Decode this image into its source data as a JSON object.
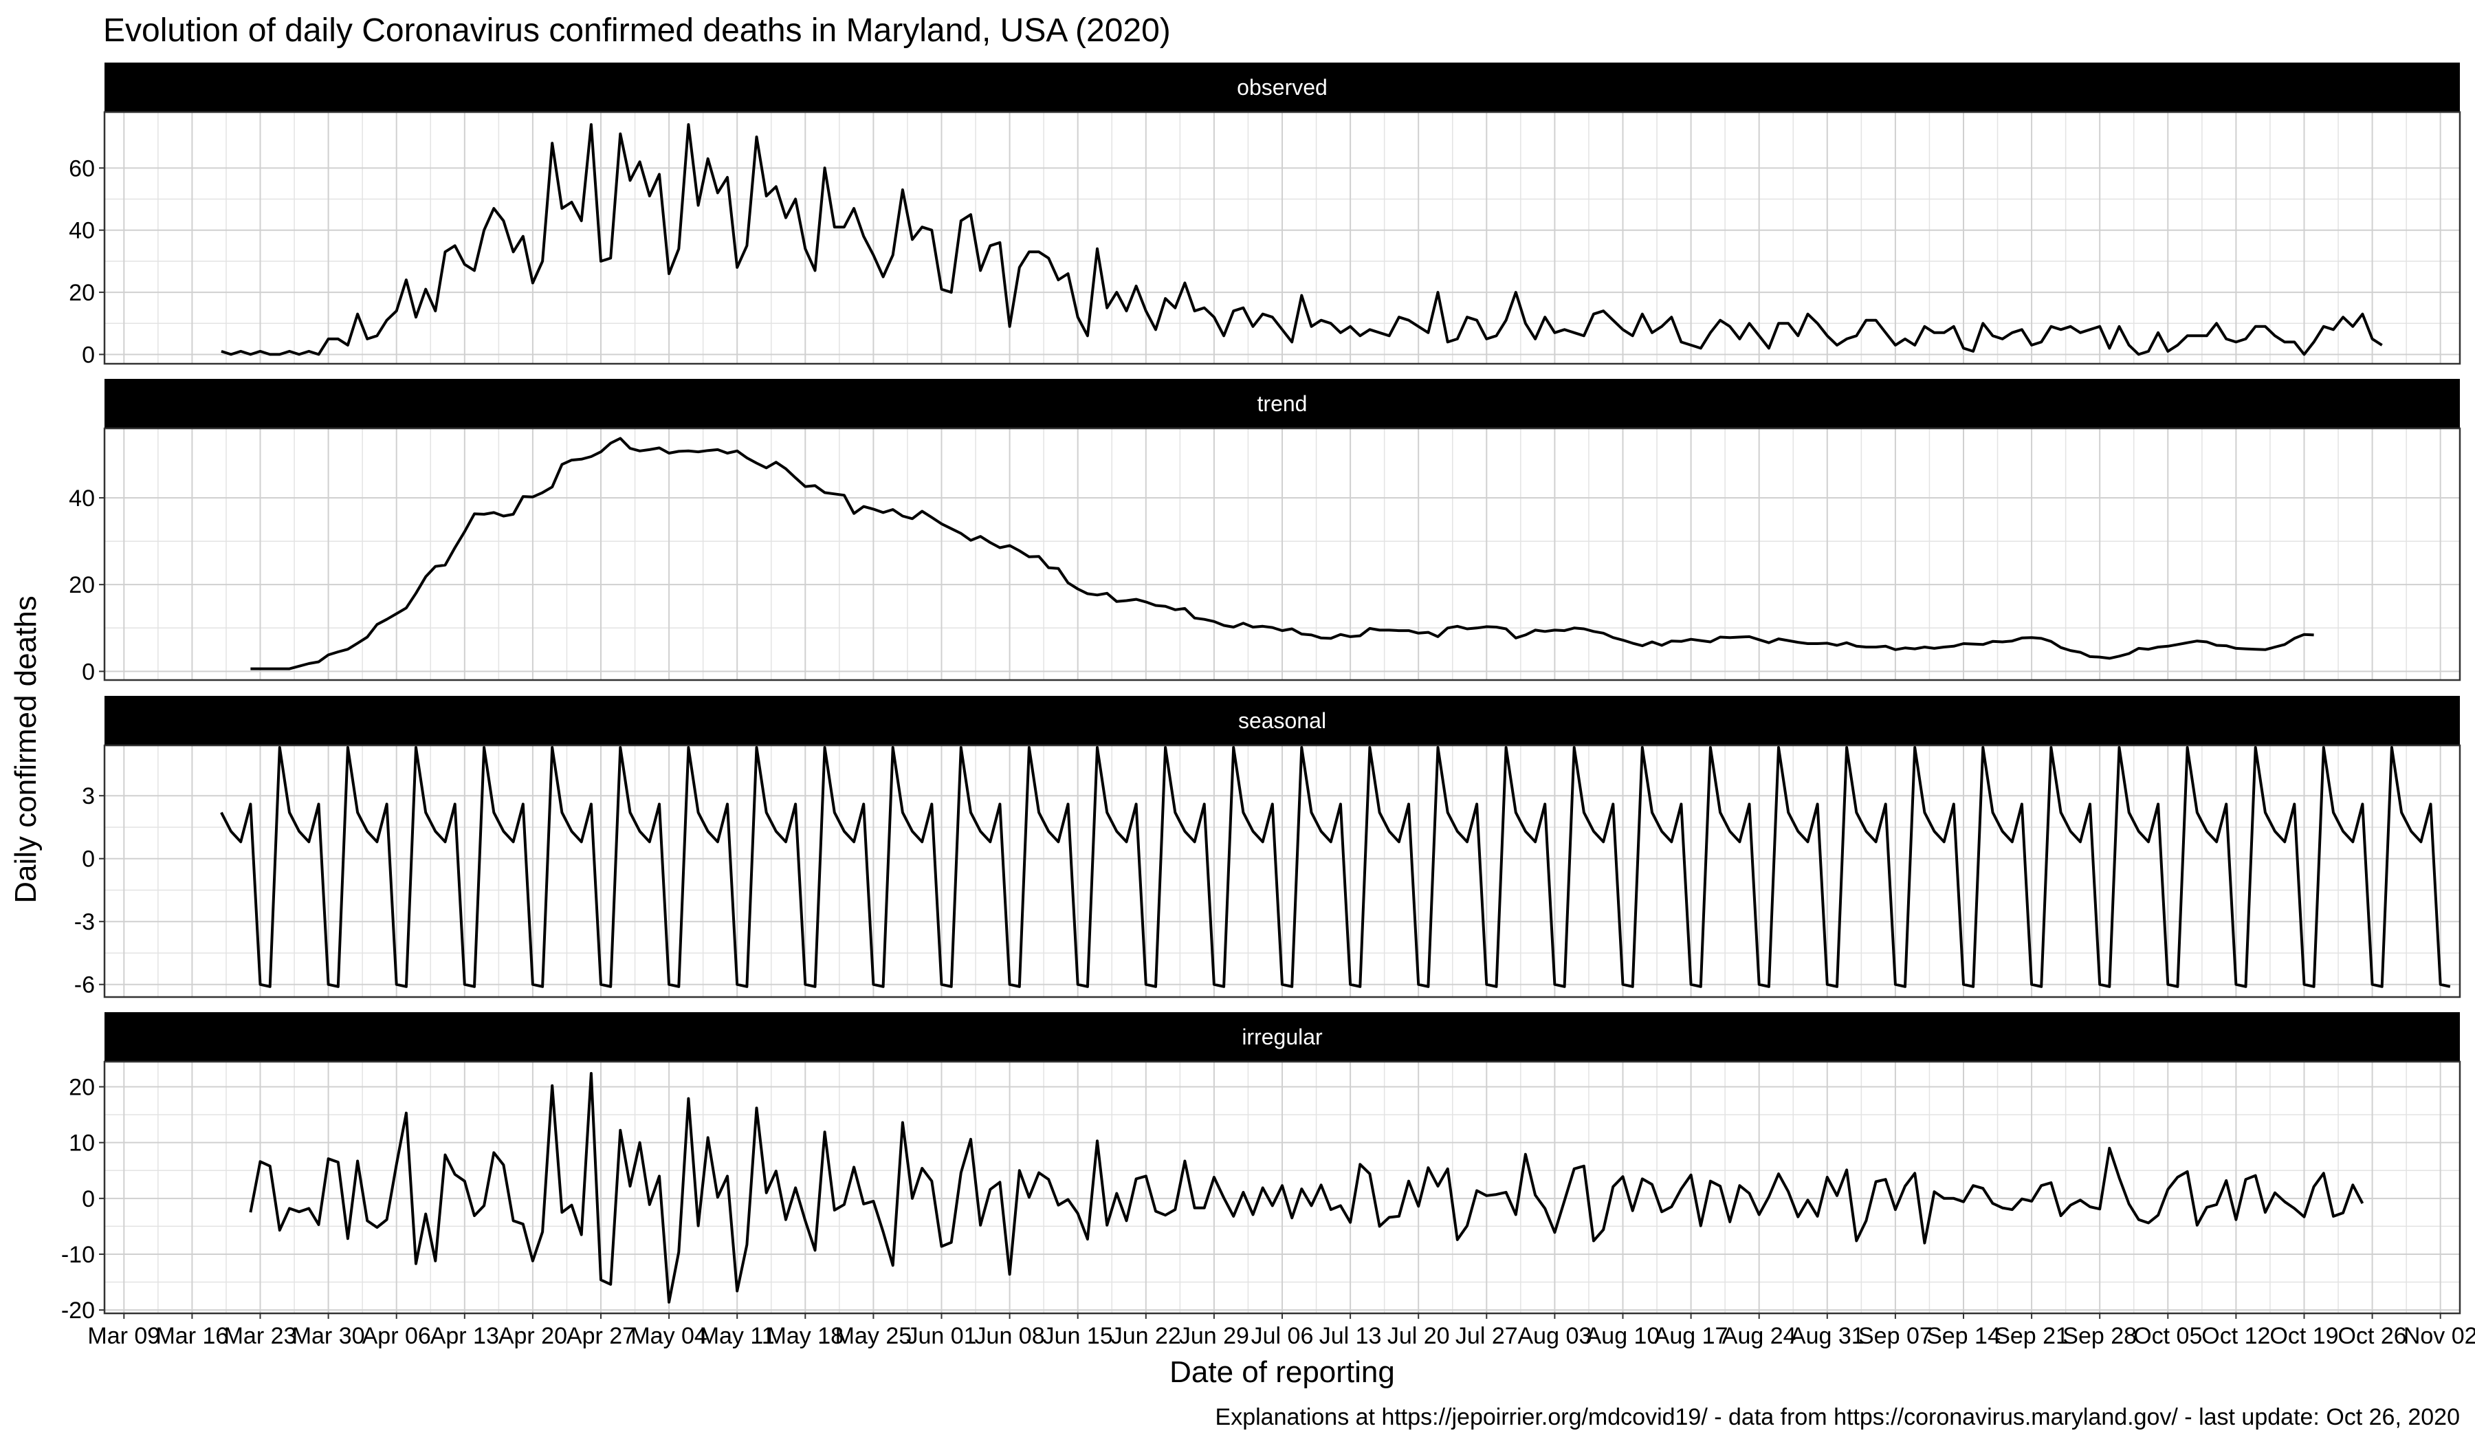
{
  "title": "Evolution of daily Coronavirus confirmed deaths in Maryland, USA (2020)",
  "caption": "Explanations at https://jepoirrier.org/mdcovid19/ - data from https://coronavirus.maryland.gov/ - last update: Oct 26, 2020",
  "chart_data": {
    "type": "line",
    "xlabel": "Date of reporting",
    "ylabel": "Daily confirmed deaths",
    "x_ticks": [
      "Mar 09",
      "Mar 16",
      "Mar 23",
      "Mar 30",
      "Apr 06",
      "Apr 13",
      "Apr 20",
      "Apr 27",
      "May 04",
      "May 11",
      "May 18",
      "May 25",
      "Jun 01",
      "Jun 08",
      "Jun 15",
      "Jun 22",
      "Jun 29",
      "Jul 06",
      "Jul 13",
      "Jul 20",
      "Jul 27",
      "Aug 03",
      "Aug 10",
      "Aug 17",
      "Aug 24",
      "Aug 31",
      "Sep 07",
      "Sep 14",
      "Sep 21",
      "Sep 28",
      "Oct 05",
      "Oct 12",
      "Oct 19",
      "Oct 26",
      "Nov 02"
    ],
    "x_range": [
      "2020-03-07",
      "2020-11-04"
    ],
    "colors": {
      "line": "#000000",
      "strip": "#000000",
      "strip_text": "#ffffff",
      "grid": "#d9d9d9"
    },
    "panels": [
      {
        "name": "observed",
        "ylim": [
          -3,
          78
        ],
        "yticks": [
          0,
          20,
          40,
          60
        ],
        "x_start": "2020-03-19",
        "values": [
          1,
          0,
          1,
          0,
          1,
          0,
          0,
          1,
          0,
          1,
          0,
          5,
          5,
          3,
          13,
          5,
          6,
          11,
          14,
          24,
          12,
          21,
          14,
          33,
          35,
          29,
          27,
          40,
          47,
          43,
          33,
          38,
          23,
          30,
          68,
          47,
          49,
          43,
          74,
          30,
          31,
          71,
          56,
          62,
          51,
          58,
          26,
          34,
          74,
          48,
          63,
          52,
          57,
          28,
          35,
          70,
          51,
          54,
          44,
          50,
          34,
          27,
          60,
          41,
          41,
          47,
          38,
          32,
          25,
          32,
          53,
          37,
          41,
          40,
          21,
          20,
          43,
          45,
          27,
          35,
          36,
          9,
          28,
          33,
          33,
          31,
          24,
          26,
          12,
          6,
          34,
          15,
          20,
          14,
          22,
          14,
          8,
          18,
          15,
          23,
          14,
          15,
          12,
          6,
          14,
          15,
          9,
          13,
          12,
          8,
          4,
          19,
          9,
          11,
          10,
          7,
          9,
          6,
          8,
          7,
          6,
          12,
          11,
          9,
          7,
          20,
          4,
          5,
          12,
          11,
          5,
          6,
          11,
          20,
          10,
          5,
          12,
          7,
          8,
          7,
          6,
          13,
          14,
          11,
          8,
          6,
          13,
          7,
          9,
          12,
          4,
          3,
          2,
          7,
          11,
          9,
          5,
          10,
          6,
          2,
          10,
          10,
          6,
          13,
          10,
          6,
          3,
          5,
          6,
          11,
          11,
          7,
          3,
          5,
          3,
          9,
          7,
          7,
          9,
          2,
          1,
          10,
          6,
          5,
          7,
          8,
          3,
          4,
          9,
          8,
          9,
          7,
          8,
          9,
          2,
          9,
          3,
          0,
          1,
          7,
          1,
          3,
          6,
          6,
          6,
          10,
          5,
          4,
          5,
          9,
          9,
          6,
          4,
          4,
          0,
          4,
          9,
          8,
          12,
          9,
          13,
          5,
          3
        ]
      },
      {
        "name": "trend",
        "ylim": [
          -2,
          56
        ],
        "yticks": [
          0,
          20,
          40
        ],
        "x_start": "2020-03-22",
        "values": [
          0.6,
          0.6,
          0.6,
          0.6,
          0.6,
          1.2,
          1.8,
          2.2,
          3.8,
          4.5,
          5.1,
          6.5,
          7.9,
          10.8,
          12.0,
          13.3,
          14.6,
          18.0,
          21.8,
          24.2,
          24.5,
          28.5,
          32.2,
          36.3,
          36.2,
          36.6,
          35.8,
          36.2,
          40.3,
          40.2,
          41.2,
          42.5,
          47.7,
          48.7,
          48.9,
          49.5,
          50.6,
          52.6,
          53.7,
          51.4,
          50.8,
          51.1,
          51.5,
          50.3,
          50.7,
          50.8,
          50.6,
          50.9,
          51.1,
          50.3,
          50.8,
          49.2,
          48.0,
          46.9,
          48.2,
          46.7,
          44.6,
          42.6,
          42.8,
          41.2,
          40.9,
          40.6,
          36.4,
          38.0,
          37.4,
          36.6,
          37.3,
          35.8,
          35.2,
          36.9,
          35.5,
          34.0,
          32.9,
          31.8,
          30.2,
          31.1,
          29.7,
          28.5,
          29.0,
          27.8,
          26.4,
          26.5,
          23.9,
          23.7,
          20.4,
          19.0,
          17.9,
          17.6,
          18.0,
          16.1,
          16.3,
          16.6,
          16.0,
          15.2,
          15.0,
          14.2,
          14.5,
          12.3,
          12.0,
          11.5,
          10.6,
          10.2,
          11.1,
          10.2,
          10.4,
          10.1,
          9.4,
          9.8,
          8.6,
          8.4,
          7.7,
          7.6,
          8.5,
          8.0,
          8.2,
          9.9,
          9.5,
          9.5,
          9.4,
          9.4,
          8.8,
          9.0,
          8.0,
          10.0,
          10.4,
          9.8,
          10.0,
          10.3,
          10.2,
          9.8,
          7.7,
          8.4,
          9.5,
          9.2,
          9.5,
          9.4,
          10.0,
          9.8,
          9.2,
          8.8,
          7.8,
          7.2,
          6.5,
          5.9,
          6.8,
          6.0,
          7.0,
          6.9,
          7.4,
          7.1,
          6.8,
          7.9,
          7.8,
          7.9,
          8.0,
          7.3,
          6.6,
          7.5,
          7.1,
          6.7,
          6.4,
          6.4,
          6.5,
          6.0,
          6.6,
          5.8,
          5.6,
          5.6,
          5.8,
          5.0,
          5.4,
          5.2,
          5.6,
          5.3,
          5.6,
          5.8,
          6.4,
          6.3,
          6.2,
          6.9,
          6.8,
          7.0,
          7.7,
          7.8,
          7.6,
          6.9,
          5.5,
          4.8,
          4.4,
          3.4,
          3.3,
          3.0,
          3.5,
          4.1,
          5.3,
          5.1,
          5.6,
          5.8,
          6.2,
          6.6,
          7.0,
          6.8,
          6.0,
          5.9,
          5.3,
          5.2,
          5.1,
          5.0,
          5.6,
          6.2,
          7.6,
          8.5,
          8.4
        ]
      },
      {
        "name": "seasonal",
        "ylim": [
          -6.6,
          5.4
        ],
        "yticks": [
          -6,
          -3,
          0,
          3
        ],
        "x_start": "2020-03-19",
        "cycle": [
          2.2,
          1.3,
          0.8,
          2.6,
          -6.0,
          -6.1,
          5.3
        ],
        "cycle_count": 32
      },
      {
        "name": "irregular",
        "ylim": [
          -20.6,
          24.5
        ],
        "yticks": [
          -20,
          -10,
          0,
          10,
          20
        ],
        "x_start": "2020-03-22",
        "values": [
          -2.5,
          6.6,
          5.8,
          -5.7,
          -1.8,
          -2.4,
          -1.8,
          -4.7,
          7.1,
          6.5,
          -7.2,
          6.7,
          -4.0,
          -5.2,
          -3.8,
          6.1,
          15.3,
          -11.7,
          -2.8,
          -11.2,
          7.8,
          4.3,
          3.1,
          -3.1,
          -1.3,
          8.2,
          6.0,
          -4.0,
          -4.6,
          -11.2,
          -6.0,
          20.2,
          -2.5,
          -1.2,
          -6.5,
          22.4,
          -14.6,
          -15.4,
          12.2,
          2.2,
          10.0,
          -1.1,
          4.0,
          -18.6,
          -9.6,
          17.9,
          -4.9,
          10.9,
          0.2,
          4.0,
          -16.6,
          -8.3,
          16.2,
          1.0,
          4.9,
          -3.8,
          1.9,
          -4.0,
          -9.3,
          11.9,
          -2.1,
          -1.1,
          5.6,
          -1.0,
          -0.5,
          -6.0,
          -12.0,
          13.6,
          0.0,
          5.4,
          3.1,
          -8.6,
          -7.9,
          4.6,
          10.6,
          -4.8,
          1.6,
          2.9,
          -13.6,
          5.0,
          0.2,
          4.6,
          3.4,
          -1.2,
          -0.2,
          -2.7,
          -7.3,
          10.3,
          -4.8,
          0.9,
          -4.0,
          3.5,
          4.0,
          -2.3,
          -3.0,
          -2.0,
          6.7,
          -1.7,
          -1.7,
          3.8,
          0.1,
          -3.2,
          1.1,
          -2.9,
          1.9,
          -1.3,
          2.3,
          -3.5,
          1.7,
          -1.3,
          2.4,
          -2.0,
          -1.3,
          -4.3,
          6.1,
          4.4,
          -5.0,
          -3.4,
          -3.2,
          3.1,
          -1.4,
          5.5,
          2.2,
          5.3,
          -7.4,
          -4.9,
          1.4,
          0.5,
          0.7,
          1.1,
          -2.9,
          7.9,
          0.6,
          -1.8,
          -6.1,
          -0.4,
          5.3,
          5.8,
          -7.6,
          -5.6,
          2.1,
          3.9,
          -2.2,
          3.5,
          2.5,
          -2.4,
          -1.5,
          1.7,
          4.2,
          -4.9,
          3.1,
          2.2,
          -4.2,
          2.3,
          0.9,
          -2.9,
          0.3,
          4.4,
          1.2,
          -3.3,
          -0.3,
          -3.2,
          3.8,
          0.5,
          5.1,
          -7.6,
          -4.0,
          3.0,
          3.4,
          -2.0,
          2.2,
          4.5,
          -8.0,
          1.2,
          0.0,
          0.0,
          -0.6,
          2.3,
          1.8,
          -0.9,
          -1.7,
          -2.0,
          -0.1,
          -0.5,
          2.3,
          2.8,
          -3.1,
          -1.2,
          -0.3,
          -1.5,
          -1.9,
          9.0,
          3.7,
          -1.0,
          -3.8,
          -4.4,
          -3.0,
          1.6,
          3.8,
          4.8,
          -4.8,
          -1.6,
          -1.1,
          3.2,
          -3.8,
          3.4,
          4.1,
          -2.5,
          1.0,
          -0.6,
          -1.8,
          -3.3,
          2.1,
          4.5,
          -3.2,
          -2.6,
          2.4,
          -0.9
        ]
      }
    ]
  }
}
